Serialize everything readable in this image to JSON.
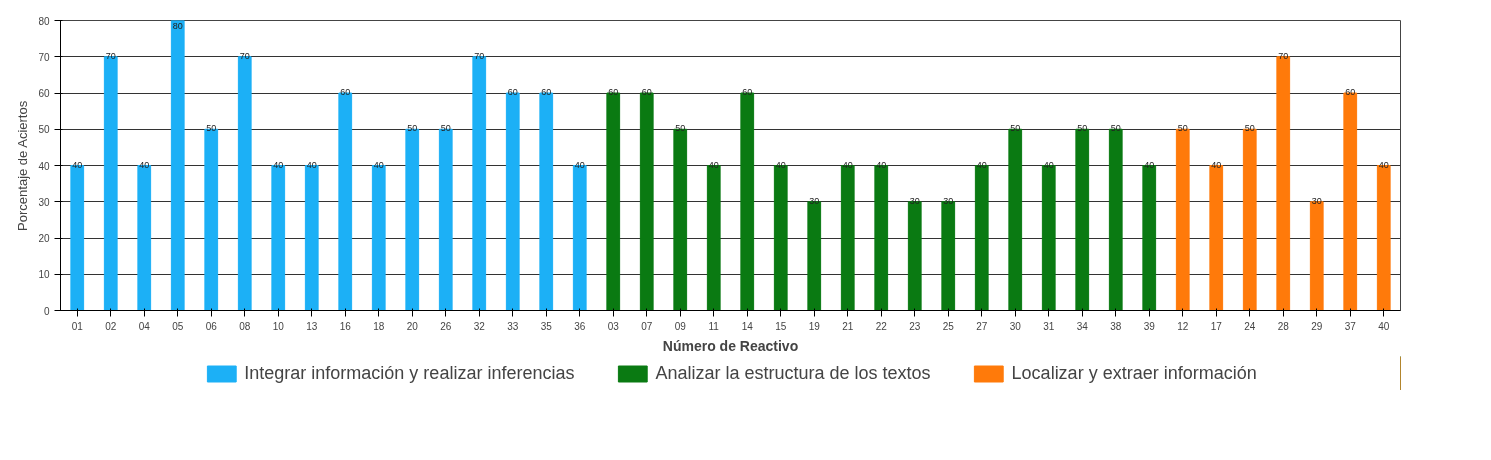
{
  "chart_data": {
    "type": "bar",
    "xlabel": "Número de Reactivo",
    "ylabel": "Porcentaje de Aciertos",
    "categories": [
      "01",
      "02",
      "04",
      "05",
      "06",
      "08",
      "10",
      "13",
      "16",
      "18",
      "20",
      "26",
      "32",
      "33",
      "35",
      "36",
      "03",
      "07",
      "09",
      "11",
      "14",
      "15",
      "19",
      "21",
      "22",
      "23",
      "25",
      "27",
      "30",
      "31",
      "34",
      "38",
      "39",
      "12",
      "17",
      "24",
      "28",
      "29",
      "37",
      "40"
    ],
    "series": [
      {
        "name": "Integrar información y realizar inferencias",
        "color": "#1cb0f6",
        "values": [
          40,
          70,
          40,
          80,
          50,
          70,
          40,
          40,
          60,
          40,
          50,
          50,
          70,
          60,
          60,
          40,
          null,
          null,
          null,
          null,
          null,
          null,
          null,
          null,
          null,
          null,
          null,
          null,
          null,
          null,
          null,
          null,
          null,
          null,
          null,
          null,
          null,
          null,
          null,
          null
        ]
      },
      {
        "name": "Analizar la estructura de los textos",
        "color": "#0a7a12",
        "values": [
          null,
          null,
          null,
          null,
          null,
          null,
          null,
          null,
          null,
          null,
          null,
          null,
          null,
          null,
          null,
          null,
          60,
          60,
          50,
          40,
          60,
          40,
          30,
          40,
          40,
          30,
          30,
          40,
          50,
          40,
          50,
          50,
          40,
          null,
          null,
          null,
          null,
          null,
          null,
          null
        ]
      },
      {
        "name": "Localizar y extraer información",
        "color": "#ff7a0a",
        "values": [
          null,
          null,
          null,
          null,
          null,
          null,
          null,
          null,
          null,
          null,
          null,
          null,
          null,
          null,
          null,
          null,
          null,
          null,
          null,
          null,
          null,
          null,
          null,
          null,
          null,
          null,
          null,
          null,
          null,
          null,
          null,
          null,
          null,
          50,
          40,
          50,
          70,
          30,
          60,
          40
        ]
      }
    ],
    "ylim": [
      0,
      80
    ],
    "yticks": [
      0,
      10,
      20,
      30,
      40,
      50,
      60,
      70,
      80
    ],
    "grid": "y",
    "data_labels": true,
    "legend": "bottom"
  }
}
